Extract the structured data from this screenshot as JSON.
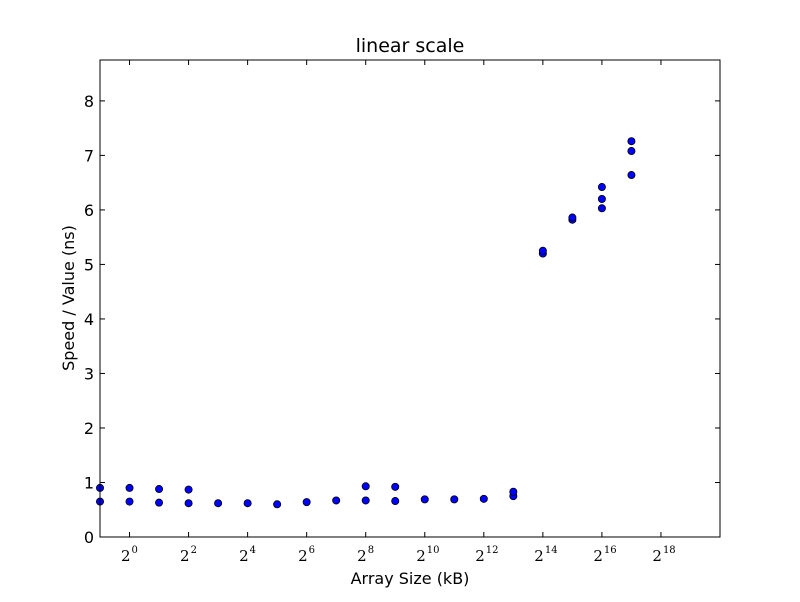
{
  "chart_data": {
    "type": "scatter",
    "title": "linear scale",
    "xlabel": "Array Size (kB)",
    "ylabel": "Speed / Value (ns)",
    "x_scale": "log2",
    "xlim": [
      -1,
      20
    ],
    "ylim": [
      0,
      8.75
    ],
    "grid": false,
    "legend": "none",
    "point_color": "#0000ff",
    "point_edge_color": "#000000",
    "x_ticks": [
      {
        "base": "2",
        "exp": "0",
        "value": 1
      },
      {
        "base": "2",
        "exp": "2",
        "value": 4
      },
      {
        "base": "2",
        "exp": "4",
        "value": 16
      },
      {
        "base": "2",
        "exp": "6",
        "value": 64
      },
      {
        "base": "2",
        "exp": "8",
        "value": 256
      },
      {
        "base": "2",
        "exp": "10",
        "value": 1024
      },
      {
        "base": "2",
        "exp": "12",
        "value": 4096
      },
      {
        "base": "2",
        "exp": "14",
        "value": 16384
      },
      {
        "base": "2",
        "exp": "16",
        "value": 65536
      },
      {
        "base": "2",
        "exp": "18",
        "value": 262144
      }
    ],
    "y_ticks": [
      "0",
      "1",
      "2",
      "3",
      "4",
      "5",
      "6",
      "7",
      "8"
    ],
    "series": [
      {
        "points": [
          {
            "x": 0.5,
            "y": 0.65
          },
          {
            "x": 0.5,
            "y": 0.9
          },
          {
            "x": 1,
            "y": 0.65
          },
          {
            "x": 1,
            "y": 0.9
          },
          {
            "x": 2,
            "y": 0.63
          },
          {
            "x": 2,
            "y": 0.88
          },
          {
            "x": 4,
            "y": 0.62
          },
          {
            "x": 4,
            "y": 0.87
          },
          {
            "x": 8,
            "y": 0.62
          },
          {
            "x": 16,
            "y": 0.62
          },
          {
            "x": 32,
            "y": 0.6
          },
          {
            "x": 64,
            "y": 0.64
          },
          {
            "x": 128,
            "y": 0.67
          },
          {
            "x": 256,
            "y": 0.67
          },
          {
            "x": 256,
            "y": 0.93
          },
          {
            "x": 512,
            "y": 0.66
          },
          {
            "x": 512,
            "y": 0.92
          },
          {
            "x": 1024,
            "y": 0.69
          },
          {
            "x": 2048,
            "y": 0.69
          },
          {
            "x": 4096,
            "y": 0.7
          },
          {
            "x": 8192,
            "y": 0.75
          },
          {
            "x": 8192,
            "y": 0.83
          },
          {
            "x": 16384,
            "y": 5.2
          },
          {
            "x": 16384,
            "y": 5.25
          },
          {
            "x": 32768,
            "y": 5.82
          },
          {
            "x": 32768,
            "y": 5.86
          },
          {
            "x": 65536,
            "y": 6.03
          },
          {
            "x": 65536,
            "y": 6.2
          },
          {
            "x": 65536,
            "y": 6.42
          },
          {
            "x": 131072,
            "y": 6.64
          },
          {
            "x": 131072,
            "y": 7.08
          },
          {
            "x": 131072,
            "y": 7.26
          }
        ]
      }
    ]
  }
}
